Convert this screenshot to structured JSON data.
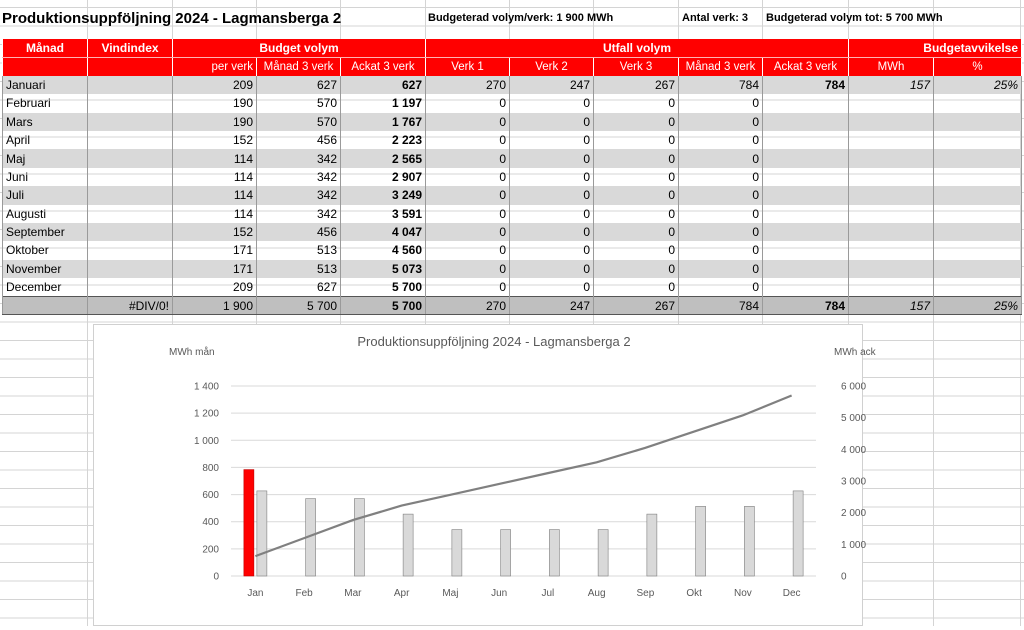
{
  "sheet": {
    "title": "Produktionsuppföljning 2024 - Lagmansberga 2",
    "budget_per_verk": "Budgeterad volym/verk: 1 900 MWh",
    "antal_verk": "Antal verk: 3",
    "budget_tot": "Budgeterad volym tot: 5 700 MWh",
    "headers": {
      "manad": "Månad",
      "vindindex": "Vindindex",
      "budget_volym": "Budget volym",
      "utfall_volym": "Utfall volym",
      "budgetavvikelse": "Budgetavvikelse",
      "per_verk": "per verk",
      "manad_3_verk": "Månad 3 verk",
      "ackat_3_verk_b": "Ackat 3 verk",
      "verk1": "Verk 1",
      "verk2": "Verk 2",
      "verk3": "Verk 3",
      "manad_3_verk_u": "Månad 3 verk",
      "ackat_3_verk_u": "Ackat 3 verk",
      "mwh": "MWh",
      "pct": "%"
    },
    "rows": [
      {
        "m": "Januari",
        "vi": "",
        "pv": "209",
        "m3": "627",
        "ack": "627",
        "v1": "270",
        "v2": "247",
        "v3": "267",
        "um3": "784",
        "uack": "784",
        "mwh": "157",
        "pct": "25%"
      },
      {
        "m": "Februari",
        "vi": "",
        "pv": "190",
        "m3": "570",
        "ack": "1 197",
        "v1": "0",
        "v2": "0",
        "v3": "0",
        "um3": "0",
        "uack": "",
        "mwh": "",
        "pct": ""
      },
      {
        "m": "Mars",
        "vi": "",
        "pv": "190",
        "m3": "570",
        "ack": "1 767",
        "v1": "0",
        "v2": "0",
        "v3": "0",
        "um3": "0",
        "uack": "",
        "mwh": "",
        "pct": ""
      },
      {
        "m": "April",
        "vi": "",
        "pv": "152",
        "m3": "456",
        "ack": "2 223",
        "v1": "0",
        "v2": "0",
        "v3": "0",
        "um3": "0",
        "uack": "",
        "mwh": "",
        "pct": ""
      },
      {
        "m": "Maj",
        "vi": "",
        "pv": "114",
        "m3": "342",
        "ack": "2 565",
        "v1": "0",
        "v2": "0",
        "v3": "0",
        "um3": "0",
        "uack": "",
        "mwh": "",
        "pct": ""
      },
      {
        "m": "Juni",
        "vi": "",
        "pv": "114",
        "m3": "342",
        "ack": "2 907",
        "v1": "0",
        "v2": "0",
        "v3": "0",
        "um3": "0",
        "uack": "",
        "mwh": "",
        "pct": ""
      },
      {
        "m": "Juli",
        "vi": "",
        "pv": "114",
        "m3": "342",
        "ack": "3 249",
        "v1": "0",
        "v2": "0",
        "v3": "0",
        "um3": "0",
        "uack": "",
        "mwh": "",
        "pct": ""
      },
      {
        "m": "Augusti",
        "vi": "",
        "pv": "114",
        "m3": "342",
        "ack": "3 591",
        "v1": "0",
        "v2": "0",
        "v3": "0",
        "um3": "0",
        "uack": "",
        "mwh": "",
        "pct": ""
      },
      {
        "m": "September",
        "vi": "",
        "pv": "152",
        "m3": "456",
        "ack": "4 047",
        "v1": "0",
        "v2": "0",
        "v3": "0",
        "um3": "0",
        "uack": "",
        "mwh": "",
        "pct": ""
      },
      {
        "m": "Oktober",
        "vi": "",
        "pv": "171",
        "m3": "513",
        "ack": "4 560",
        "v1": "0",
        "v2": "0",
        "v3": "0",
        "um3": "0",
        "uack": "",
        "mwh": "",
        "pct": ""
      },
      {
        "m": "November",
        "vi": "",
        "pv": "171",
        "m3": "513",
        "ack": "5 073",
        "v1": "0",
        "v2": "0",
        "v3": "0",
        "um3": "0",
        "uack": "",
        "mwh": "",
        "pct": ""
      },
      {
        "m": "December",
        "vi": "",
        "pv": "209",
        "m3": "627",
        "ack": "5 700",
        "v1": "0",
        "v2": "0",
        "v3": "0",
        "um3": "0",
        "uack": "",
        "mwh": "",
        "pct": ""
      }
    ],
    "totals": {
      "m": "",
      "vi": "#DIV/0!",
      "pv": "1 900",
      "m3": "5 700",
      "ack": "5 700",
      "v1": "270",
      "v2": "247",
      "v3": "267",
      "um3": "784",
      "uack": "784",
      "mwh": "157",
      "pct": "25%"
    }
  },
  "colors": {
    "header_red": "#ff0000",
    "band_gray": "#d9d9d9",
    "total_gray": "#bfbfbf",
    "bar_gray": "#d9d9d9",
    "line_gray": "#808080"
  },
  "chart_data": {
    "type": "bar",
    "title": "Produktionsuppföljning 2024 - Lagmansberga 2",
    "ylabel": "MWh mån",
    "y2label": "MWh ack",
    "categories": [
      "Jan",
      "Feb",
      "Mar",
      "Apr",
      "Maj",
      "Jun",
      "Jul",
      "Aug",
      "Sep",
      "Okt",
      "Nov",
      "Dec"
    ],
    "ylim": [
      0,
      1400
    ],
    "y2lim": [
      0,
      6000
    ],
    "yticks": [
      0,
      200,
      400,
      600,
      800,
      1000,
      1200,
      1400
    ],
    "yticklabels": [
      "0",
      "200",
      "400",
      "600",
      "800",
      "1 000",
      "1 200",
      "1 400"
    ],
    "y2ticks": [
      0,
      1000,
      2000,
      3000,
      4000,
      5000,
      6000
    ],
    "y2ticklabels": [
      "0",
      "1 000",
      "2 000",
      "3 000",
      "4 000",
      "5 000",
      "6 000"
    ],
    "grid": true,
    "series": [
      {
        "type": "bar",
        "axis": "left",
        "color": "#ff0000",
        "values": [
          784,
          0,
          0,
          0,
          0,
          0,
          0,
          0,
          0,
          0,
          0,
          0
        ]
      },
      {
        "type": "bar",
        "axis": "left",
        "color": "#d9d9d9",
        "values": [
          627,
          570,
          570,
          456,
          342,
          342,
          342,
          342,
          456,
          513,
          513,
          627
        ]
      },
      {
        "type": "line",
        "axis": "right",
        "color": "#808080",
        "values": [
          627,
          1197,
          1767,
          2223,
          2565,
          2907,
          3249,
          3591,
          4047,
          4560,
          5073,
          5700
        ]
      }
    ]
  }
}
